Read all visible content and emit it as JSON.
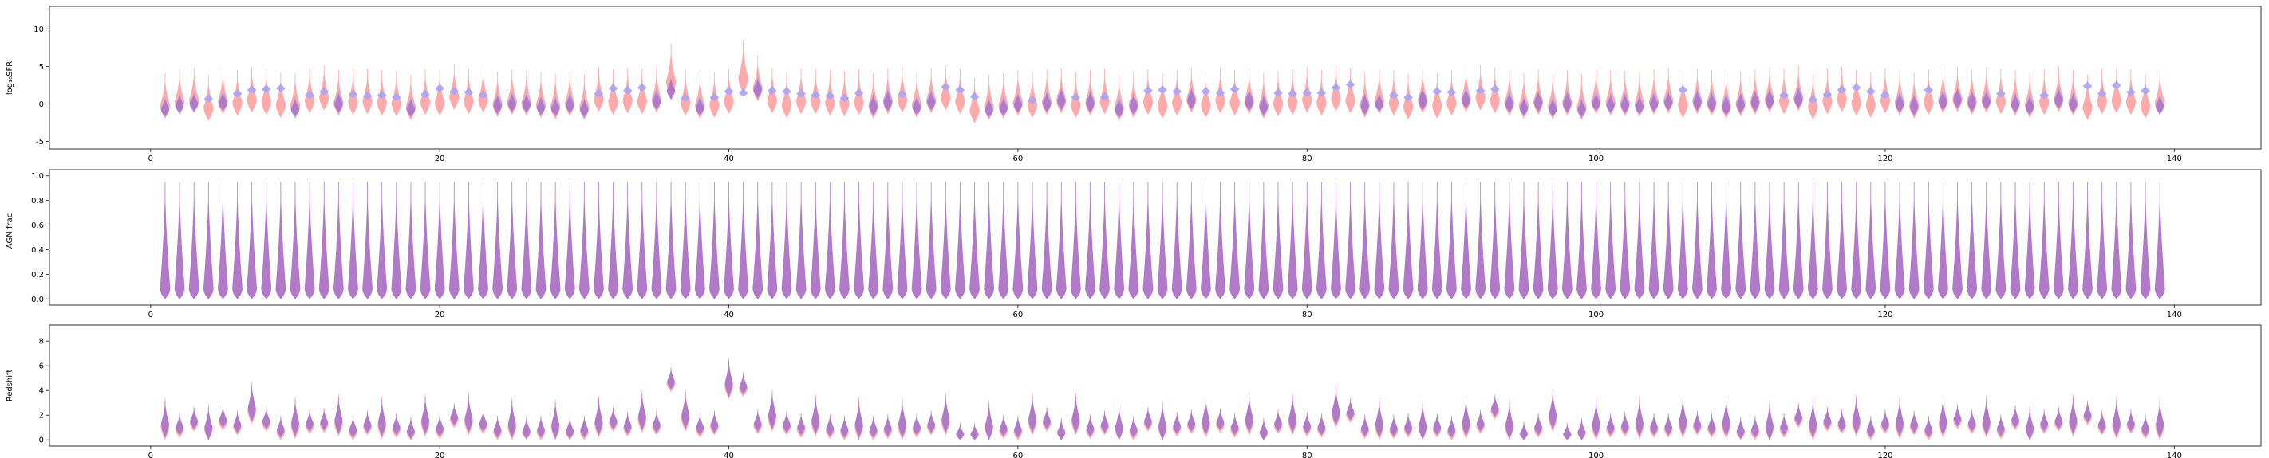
{
  "colors": {
    "pink": "#ff9b9b",
    "blue": "#a9a4f5",
    "overlap": "#b07ac9"
  },
  "chart_data": [
    {
      "type": "violin",
      "ylabel": "log₁₀SFR",
      "xlim": [
        -7,
        146
      ],
      "ylim": [
        -6,
        13
      ],
      "yticks": [
        -5,
        0,
        5,
        10
      ],
      "xticks": [
        0,
        20,
        40,
        60,
        80,
        100,
        120,
        140
      ],
      "x": [
        1,
        2,
        3,
        4,
        5,
        6,
        7,
        8,
        9,
        10,
        11,
        12,
        13,
        14,
        15,
        16,
        17,
        18,
        19,
        20,
        21,
        22,
        23,
        24,
        25,
        26,
        27,
        28,
        29,
        30,
        31,
        32,
        33,
        34,
        35,
        36,
        37,
        38,
        39,
        40,
        41,
        42,
        43,
        44,
        45,
        46,
        47,
        48,
        49,
        50,
        51,
        52,
        53,
        54,
        55,
        56,
        57,
        58,
        59,
        60,
        61,
        62,
        63,
        64,
        65,
        66,
        67,
        68,
        69,
        70,
        71,
        72,
        73,
        74,
        75,
        76,
        77,
        78,
        79,
        80,
        81,
        82,
        83,
        84,
        85,
        86,
        87,
        88,
        89,
        90,
        91,
        92,
        93,
        94,
        95,
        96,
        97,
        98,
        99,
        100,
        101,
        102,
        103,
        104,
        105,
        106,
        107,
        108,
        109,
        110,
        111,
        112,
        113,
        114,
        115,
        116,
        117,
        118,
        119,
        120,
        121,
        122,
        123,
        124,
        125,
        126,
        127,
        128,
        129,
        130,
        131,
        132,
        133,
        134,
        135,
        136,
        137,
        138,
        139
      ],
      "series": [
        {
          "medians": [
            -0.3,
            0.2,
            0.4,
            -0.6,
            0.3,
            0.1,
            0.5,
            0.2,
            -0.2,
            -0.3,
            0.4,
            0.8,
            0.1,
            0.2,
            0.3,
            0.1,
            0.0,
            -0.5,
            0.2,
            0.1,
            0.9,
            0.3,
            0.5,
            -0.1,
            0.2,
            0.1,
            -0.2,
            -0.4,
            0.0,
            -0.5,
            0.6,
            0.2,
            0.4,
            0.3,
            0.5,
            2.5,
            0.1,
            -0.3,
            -0.2,
            0.3,
            3.0,
            2.0,
            0.4,
            -0.2,
            0.3,
            0.3,
            0.1,
            0.0,
            0.2,
            -0.3,
            0.3,
            0.5,
            -0.2,
            0.4,
            0.8,
            0.3,
            -0.9,
            -0.5,
            -0.3,
            0.1,
            -0.2,
            0.2,
            0.4,
            -0.2,
            0.1,
            0.3,
            -0.6,
            -0.2,
            0.2,
            -0.3,
            0.1,
            0.5,
            -0.2,
            0.4,
            0.1,
            0.3,
            -0.3,
            0.0,
            0.2,
            0.5,
            0.1,
            0.7,
            0.4,
            -0.2,
            0.3,
            0.1,
            -0.4,
            0.4,
            -0.3,
            0.1,
            0.6,
            0.8,
            0.4,
            0.1,
            -0.3,
            0.2,
            -0.4,
            0.1,
            -0.5,
            0.3,
            0.1,
            0.0,
            -0.1,
            0.2,
            0.4,
            -0.2,
            0.3,
            0.1,
            -0.3,
            0.0,
            0.2,
            0.5,
            0.3,
            0.7,
            -0.4,
            0.3,
            0.6,
            0.1,
            -0.2,
            0.4,
            0.1,
            -0.3,
            0.2,
            0.4,
            0.6,
            0.2,
            0.5,
            0.3,
            0.1,
            -0.2,
            0.2,
            0.6,
            0.1,
            -0.5,
            0.3,
            0.4,
            0.2,
            -0.3,
            0.1
          ]
        },
        {
          "medians": [
            -0.4,
            0.1,
            0.3,
            0.8,
            0.6,
            1.5,
            2.0,
            2.1,
            2.2,
            -0.4,
            1.3,
            1.8,
            0.5,
            1.4,
            1.2,
            1.3,
            1.0,
            -0.3,
            1.4,
            2.2,
            1.8,
            1.7,
            1.3,
            0.2,
            0.4,
            0.3,
            -0.1,
            -0.2,
            0.3,
            -0.4,
            1.5,
            2.2,
            1.9,
            2.3,
            0.8,
            1.8,
            0.9,
            -0.1,
            1.0,
            1.8,
            1.6,
            2.4,
            1.9,
            1.8,
            1.5,
            1.3,
            1.2,
            0.9,
            1.6,
            0.3,
            0.8,
            1.4,
            -0.1,
            0.7,
            2.4,
            2.0,
            1.1,
            -0.4,
            -0.2,
            0.3,
            0.6,
            0.5,
            1.2,
            1.0,
            0.8,
            1.1,
            -0.3,
            0.4,
            1.9,
            2.0,
            1.8,
            1.2,
            1.8,
            1.6,
            2.1,
            1.0,
            0.1,
            1.6,
            1.5,
            1.6,
            1.6,
            2.3,
            2.7,
            0.4,
            0.3,
            1.3,
            1.0,
            1.2,
            1.8,
            1.7,
            1.0,
            1.9,
            2.1,
            0.5,
            -0.2,
            0.8,
            -0.3,
            0.6,
            -0.4,
            0.5,
            0.2,
            0.3,
            0.0,
            0.4,
            0.6,
            2.0,
            0.8,
            0.5,
            0.2,
            0.4,
            0.9,
            1.1,
            1.3,
            1.2,
            0.7,
            1.4,
            2.0,
            2.3,
            1.8,
            1.3,
            0.5,
            0.3,
            2.0,
            0.8,
            1.2,
            0.9,
            0.7,
            1.5,
            0.3,
            0.1,
            1.3,
            1.0,
            0.4,
            2.5,
            1.5,
            2.6,
            1.7,
            1.9,
            0.0
          ]
        }
      ]
    },
    {
      "type": "violin",
      "ylabel": "AGN frac",
      "xlim": [
        -7,
        146
      ],
      "ylim": [
        -0.05,
        1.05
      ],
      "yticks": [
        0.0,
        0.2,
        0.4,
        0.6,
        0.8,
        1.0
      ],
      "ytick_labels": [
        "0.0",
        "0.2",
        "0.4",
        "0.6",
        "0.8",
        "1.0"
      ],
      "xticks": [
        0,
        20,
        40,
        60,
        80,
        100,
        120,
        140
      ],
      "range": [
        0.0,
        0.95
      ],
      "peak": 0.08
    },
    {
      "type": "violin",
      "ylabel": "Redshift",
      "xlim": [
        -7,
        146
      ],
      "ylim": [
        -0.5,
        9.3
      ],
      "yticks": [
        0,
        2,
        4,
        6,
        8
      ],
      "xticks": [
        0,
        20,
        40,
        60,
        80,
        100,
        120,
        140
      ],
      "series": [
        {
          "medians": [
            0.8,
            1.0,
            1.5,
            0.3,
            1.6,
            1.2,
            2.1,
            1.5,
            0.8,
            0.9,
            1.3,
            1.4,
            1.1,
            0.8,
            1.2,
            0.9,
            1.0,
            0.7,
            1.1,
            0.9,
            1.8,
            1.2,
            1.3,
            0.8,
            0.8,
            0.7,
            0.8,
            0.7,
            0.7,
            0.8,
            1.0,
            1.5,
            1.1,
            1.4,
            1.2,
            4.7,
            1.5,
            1.0,
            1.2,
            4.1,
            4.3,
            1.3,
            1.5,
            1.2,
            1.0,
            1.1,
            0.9,
            0.8,
            0.8,
            0.8,
            0.9,
            0.8,
            1.0,
            1.2,
            1.2,
            0.2,
            0.2,
            0.6,
            0.9,
            0.8,
            1.2,
            1.5,
            0.6,
            1.2,
            0.9,
            1.2,
            0.3,
            0.8,
            1.5,
            0.6,
            1.1,
            1.3,
            1.0,
            1.4,
            1.0,
            1.2,
            0.6,
            1.3,
            1.2,
            1.1,
            1.0,
            1.8,
            2.2,
            0.9,
            0.8,
            0.9,
            1.0,
            0.6,
            1.0,
            0.8,
            0.9,
            1.3,
            2.5,
            0.7,
            0.3,
            1.0,
            1.5,
            0.2,
            0.6,
            0.8,
            1.0,
            1.1,
            0.9,
            1.0,
            1.0,
            1.0,
            1.2,
            1.0,
            0.9,
            0.7,
            0.8,
            0.6,
            1.0,
            1.8,
            0.8,
            1.5,
            1.3,
            1.1,
            0.8,
            1.3,
            0.9,
            1.2,
            0.8,
            1.0,
            1.7,
            1.3,
            1.0,
            0.9,
            1.6,
            0.2,
            1.3,
            1.5,
            1.1,
            2.0,
            1.2,
            0.9,
            1.3,
            0.9,
            0.8
          ]
        }
      ]
    }
  ]
}
